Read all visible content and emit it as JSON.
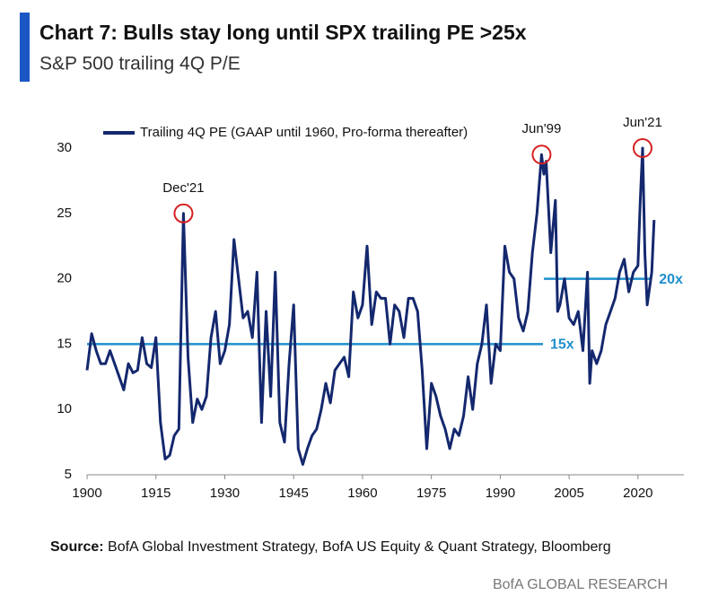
{
  "chart_data": {
    "type": "line",
    "title": "Chart 7: Bulls stay long until SPX trailing PE >25x",
    "subtitle": "S&P 500 trailing 4Q P/E",
    "x": [
      1900,
      1901,
      1902,
      1903,
      1904,
      1905,
      1906,
      1907,
      1908,
      1909,
      1910,
      1911,
      1912,
      1913,
      1914,
      1915,
      1916,
      1917,
      1918,
      1919,
      1920,
      1921,
      1922,
      1923,
      1924,
      1925,
      1926,
      1927,
      1928,
      1929,
      1930,
      1931,
      1932,
      1933,
      1934,
      1935,
      1936,
      1937,
      1938,
      1939,
      1940,
      1941,
      1942,
      1943,
      1944,
      1945,
      1946,
      1947,
      1948,
      1949,
      1950,
      1951,
      1952,
      1953,
      1954,
      1955,
      1956,
      1957,
      1958,
      1959,
      1960,
      1961,
      1962,
      1963,
      1964,
      1965,
      1966,
      1967,
      1968,
      1969,
      1970,
      1971,
      1972,
      1973,
      1974,
      1975,
      1976,
      1977,
      1978,
      1979,
      1980,
      1981,
      1982,
      1983,
      1984,
      1985,
      1986,
      1987,
      1988,
      1989,
      1990,
      1991,
      1992,
      1993,
      1994,
      1995,
      1996,
      1997,
      1998,
      1999,
      1999.5,
      2000,
      2001,
      2002,
      2002.5,
      2003,
      2004,
      2005,
      2006,
      2007,
      2008,
      2009,
      2009.5,
      2010,
      2011,
      2012,
      2013,
      2014,
      2015,
      2016,
      2017,
      2018,
      2019,
      2020,
      2020.5,
      2021,
      2021.5,
      2022,
      2023,
      2023.5
    ],
    "series": [
      {
        "name": "Trailing 4Q PE (GAAP until 1960, Pro-forma thereafter)",
        "color": "#14286e",
        "values": [
          13,
          15.8,
          14.5,
          13.5,
          13.5,
          14.5,
          13.5,
          12.5,
          11.5,
          13.5,
          12.8,
          13,
          15.5,
          13.5,
          13.2,
          15.5,
          9,
          6.2,
          6.5,
          8,
          8.5,
          25,
          14,
          9,
          10.8,
          10,
          11,
          15.5,
          17.5,
          13.5,
          14.5,
          16.5,
          23,
          20,
          17,
          17.5,
          15.5,
          20.5,
          9,
          17.5,
          11,
          20.5,
          9,
          7.5,
          13.5,
          18,
          7,
          5.8,
          7,
          8,
          8.5,
          10,
          12,
          10.5,
          13,
          13.5,
          14,
          12.5,
          19,
          17,
          18,
          22.5,
          16.5,
          19,
          18.5,
          18.5,
          15,
          18,
          17.5,
          15.5,
          18.5,
          18.5,
          17.5,
          13,
          7,
          12,
          11,
          9.5,
          8.5,
          7,
          8.5,
          8,
          9.5,
          12.5,
          10,
          13.5,
          15,
          18,
          12,
          15,
          14.5,
          22.5,
          20.5,
          20,
          17,
          16,
          17.5,
          22,
          25,
          29.5,
          28,
          29,
          22,
          26,
          17.5,
          18,
          20,
          17,
          16.5,
          17.5,
          14.5,
          20.5,
          12,
          14.5,
          13.5,
          14.5,
          16.5,
          17.5,
          18.5,
          20.5,
          21.5,
          19,
          20.5,
          21,
          26,
          30,
          22,
          18,
          20.5,
          24.5
        ]
      }
    ],
    "annotations": [
      {
        "text": "Dec'21",
        "x": 1921,
        "y": 25
      },
      {
        "text": "Jun'99",
        "x": 1999,
        "y": 29.5
      },
      {
        "text": "Jun'21",
        "x": 2021,
        "y": 30
      }
    ],
    "reference_lines": [
      {
        "value": 15,
        "label": "15x",
        "xstart": 1900,
        "xend": 1999.3,
        "color": "#1f8fce"
      },
      {
        "value": 20,
        "label": "20x",
        "xstart": 1999.5,
        "xend": 2023,
        "color": "#1f8fce"
      }
    ],
    "xlim": [
      1900,
      2030
    ],
    "xticks": [
      1900,
      1915,
      1930,
      1945,
      1960,
      1975,
      1990,
      2005,
      2020
    ],
    "ylim": [
      5,
      30
    ],
    "yticks": [
      5,
      10,
      15,
      20,
      25,
      30
    ],
    "grid": false,
    "legend": "top-left"
  },
  "source": {
    "label": "Source:",
    "text": "BofA Global Investment Strategy, BofA US Equity & Quant Strategy, Bloomberg"
  },
  "brand": "BofA GLOBAL RESEARCH"
}
